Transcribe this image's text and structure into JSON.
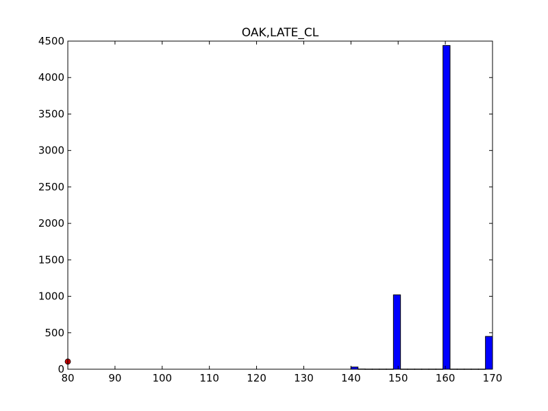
{
  "chart_data": {
    "type": "bar",
    "title": "OAK,LATE_CL",
    "xlabel": "",
    "ylabel": "",
    "xlim": [
      80,
      170
    ],
    "ylim": [
      0,
      4500
    ],
    "x_ticks": [
      "80",
      "90",
      "100",
      "110",
      "120",
      "130",
      "140",
      "150",
      "160",
      "170"
    ],
    "y_ticks": [
      "0",
      "500",
      "1000",
      "1500",
      "2000",
      "2500",
      "3000",
      "3500",
      "4000",
      "4500"
    ],
    "bar_width": 1.5,
    "bar_color": "#0000ff",
    "marker_color": "#cc0000",
    "grid": false,
    "legend": "none",
    "series": [
      {
        "type": "bar",
        "x": [
          140,
          141.5,
          143,
          144.5,
          146,
          147.5,
          149,
          150.5,
          152,
          153.5,
          155,
          156.5,
          158,
          159.5,
          161,
          162.5,
          164,
          165.5,
          167,
          168.5
        ],
        "values": [
          30,
          3,
          2,
          2,
          2,
          2,
          1020,
          2,
          2,
          2,
          2,
          2,
          2,
          4440,
          2,
          2,
          2,
          2,
          2,
          450
        ]
      },
      {
        "type": "scatter",
        "x": [
          80
        ],
        "values": [
          105
        ]
      }
    ]
  }
}
